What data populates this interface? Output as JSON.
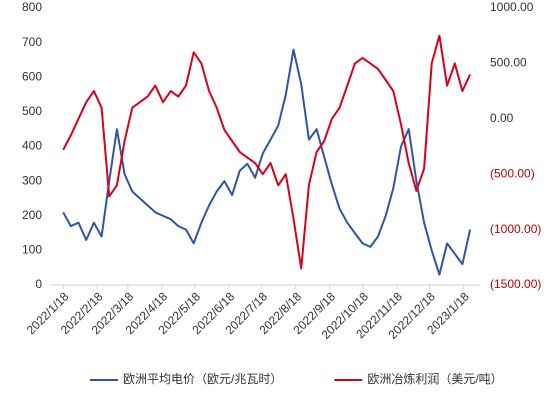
{
  "chart_data": {
    "type": "line",
    "x": [
      0,
      7,
      14,
      21,
      28,
      35,
      42,
      49,
      56,
      63,
      70,
      77,
      84,
      91,
      98,
      105,
      112,
      119,
      126,
      133,
      140,
      147,
      154,
      161,
      168,
      175,
      182,
      189,
      196,
      203,
      210,
      217,
      224,
      231,
      238,
      245,
      252,
      259,
      266,
      273,
      280,
      287,
      294,
      301,
      308,
      315,
      322,
      329,
      336,
      343,
      350,
      357,
      364,
      371
    ],
    "xlim": [
      -12,
      380
    ],
    "xticks": [
      {
        "value": 0,
        "label": "2022/1/18"
      },
      {
        "value": 31,
        "label": "2022/2/18"
      },
      {
        "value": 59,
        "label": "2022/3/18"
      },
      {
        "value": 90,
        "label": "2022/4/18"
      },
      {
        "value": 120,
        "label": "2022/5/18"
      },
      {
        "value": 151,
        "label": "2022/6/18"
      },
      {
        "value": 181,
        "label": "2022/7/18"
      },
      {
        "value": 212,
        "label": "2022/8/18"
      },
      {
        "value": 243,
        "label": "2022/9/18"
      },
      {
        "value": 273,
        "label": "2022/10/18"
      },
      {
        "value": 304,
        "label": "2022/11/18"
      },
      {
        "value": 334,
        "label": "2022/12/18"
      },
      {
        "value": 365,
        "label": "2023/1/18"
      }
    ],
    "ylim": [
      0,
      800
    ],
    "yticks": [
      0,
      100,
      200,
      300,
      400,
      500,
      600,
      700,
      800
    ],
    "y2lim": [
      -1500,
      1000
    ],
    "y2ticks": [
      {
        "value": 1000,
        "label": "1000.00"
      },
      {
        "value": 500,
        "label": "500.00"
      },
      {
        "value": 0,
        "label": "0.00"
      },
      {
        "value": -500,
        "label": "(500.00)"
      },
      {
        "value": -1000,
        "label": "(1000.00)"
      },
      {
        "value": -1500,
        "label": "(1500.00)"
      }
    ],
    "y2_negative_color": "#c00000",
    "legend": "bottom",
    "series": [
      {
        "name": "欧洲平均电价（欧元/兆瓦时）",
        "color": "#2f55a4",
        "values": [
          210,
          170,
          180,
          130,
          180,
          140,
          300,
          450,
          320,
          270,
          250,
          230,
          210,
          200,
          190,
          170,
          160,
          120,
          180,
          230,
          270,
          300,
          260,
          330,
          350,
          310,
          380,
          420,
          460,
          550,
          680,
          580,
          420,
          450,
          370,
          290,
          220,
          180,
          150,
          120,
          110,
          140,
          200,
          280,
          400,
          450,
          300,
          180,
          100,
          30,
          120,
          90,
          60,
          160
        ]
      },
      {
        "name": "欧洲冶炼利润（美元/吨）",
        "color": "#d9001b",
        "axis": "y2",
        "values": [
          -280,
          -150,
          0,
          150,
          250,
          100,
          -700,
          -600,
          -200,
          100,
          150,
          200,
          300,
          150,
          250,
          200,
          300,
          600,
          500,
          250,
          100,
          -100,
          -200,
          -300,
          -350,
          -400,
          -500,
          -400,
          -600,
          -500,
          -900,
          -1350,
          -600,
          -300,
          -200,
          0,
          100,
          300,
          500,
          550,
          500,
          450,
          350,
          250,
          -50,
          -400,
          -650,
          -450,
          500,
          750,
          300,
          500,
          250,
          400
        ]
      }
    ]
  }
}
